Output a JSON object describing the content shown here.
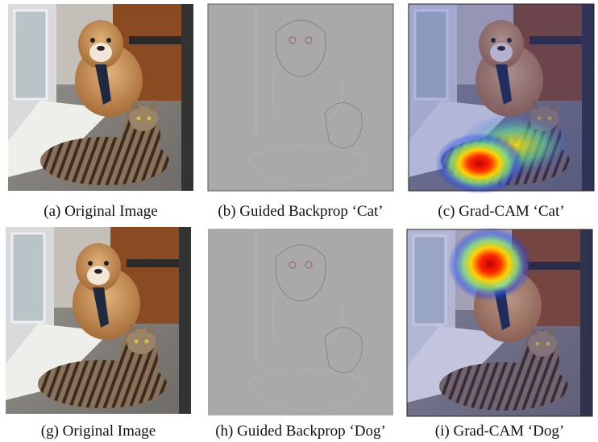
{
  "figure": {
    "panels": [
      {
        "caption": "(a) Original Image"
      },
      {
        "caption": "(b) Guided Backprop ‘Cat’"
      },
      {
        "caption": "(c) Grad-CAM ‘Cat’"
      },
      {
        "caption": "(g) Original Image"
      },
      {
        "caption": "(h) Guided Backprop ‘Dog’"
      },
      {
        "caption": "(i) Grad-CAM ‘Dog’"
      }
    ]
  }
}
